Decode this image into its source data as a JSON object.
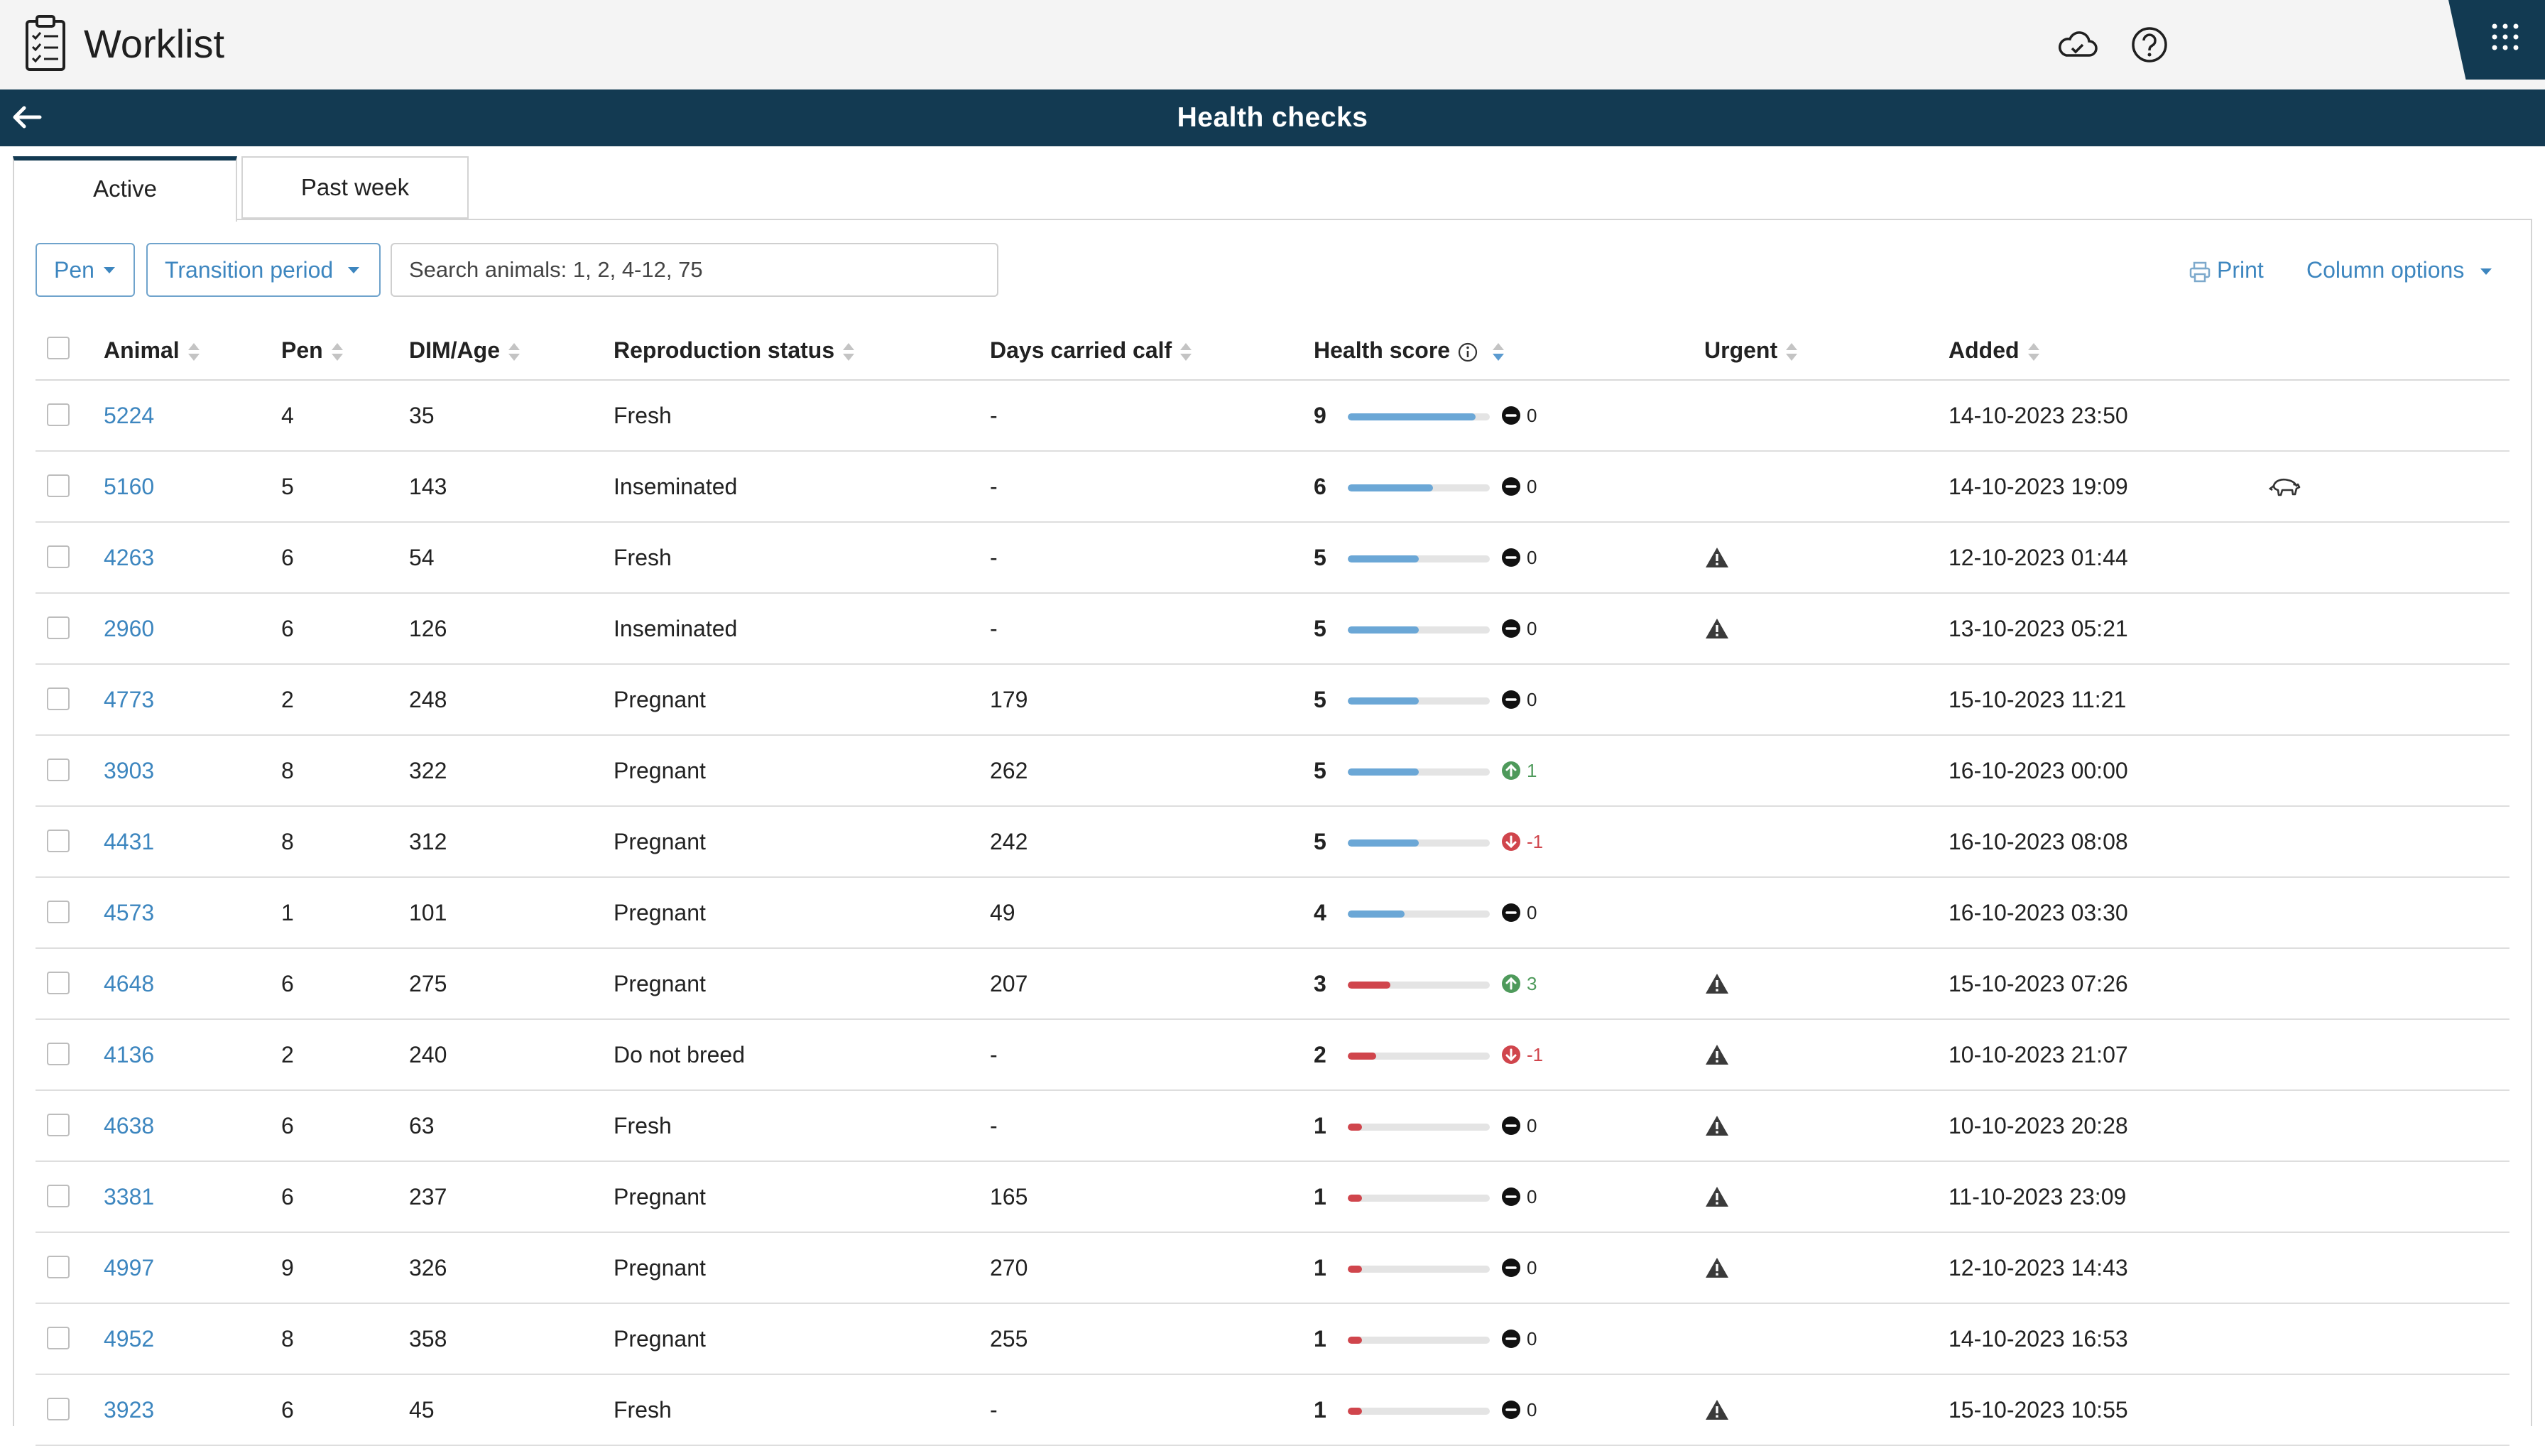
{
  "app": {
    "title": "Worklist"
  },
  "nav": {
    "title": "Health checks"
  },
  "tabs": [
    {
      "label": "Active",
      "active": true
    },
    {
      "label": "Past week",
      "active": false
    }
  ],
  "filters": {
    "pen_label": "Pen",
    "period_label": "Transition period",
    "search_placeholder": "Search animals: 1, 2, 4-12, 75"
  },
  "toolbar": {
    "print_label": "Print",
    "column_options_label": "Column options"
  },
  "table": {
    "headers": [
      "Animal",
      "Pen",
      "DIM/Age",
      "Reproduction status",
      "Days carried calf",
      "Health score",
      "Urgent",
      "Added"
    ],
    "rows": [
      {
        "animal": "5224",
        "pen": "4",
        "dim": "35",
        "status": "Fresh",
        "days": "-",
        "score": "9",
        "trend": "0",
        "trend_dir": "flat",
        "urgent": false,
        "added": "14-10-2023 23:50",
        "calf": false
      },
      {
        "animal": "5160",
        "pen": "5",
        "dim": "143",
        "status": "Inseminated",
        "days": "-",
        "score": "6",
        "trend": "0",
        "trend_dir": "flat",
        "urgent": false,
        "added": "14-10-2023 19:09",
        "calf": true
      },
      {
        "animal": "4263",
        "pen": "6",
        "dim": "54",
        "status": "Fresh",
        "days": "-",
        "score": "5",
        "trend": "0",
        "trend_dir": "flat",
        "urgent": true,
        "added": "12-10-2023 01:44",
        "calf": false
      },
      {
        "animal": "2960",
        "pen": "6",
        "dim": "126",
        "status": "Inseminated",
        "days": "-",
        "score": "5",
        "trend": "0",
        "trend_dir": "flat",
        "urgent": true,
        "added": "13-10-2023 05:21",
        "calf": false
      },
      {
        "animal": "4773",
        "pen": "2",
        "dim": "248",
        "status": "Pregnant",
        "days": "179",
        "score": "5",
        "trend": "0",
        "trend_dir": "flat",
        "urgent": false,
        "added": "15-10-2023 11:21",
        "calf": false
      },
      {
        "animal": "3903",
        "pen": "8",
        "dim": "322",
        "status": "Pregnant",
        "days": "262",
        "score": "5",
        "trend": "1",
        "trend_dir": "up",
        "urgent": false,
        "added": "16-10-2023 00:00",
        "calf": false
      },
      {
        "animal": "4431",
        "pen": "8",
        "dim": "312",
        "status": "Pregnant",
        "days": "242",
        "score": "5",
        "trend": "-1",
        "trend_dir": "down",
        "urgent": false,
        "added": "16-10-2023 08:08",
        "calf": false
      },
      {
        "animal": "4573",
        "pen": "1",
        "dim": "101",
        "status": "Pregnant",
        "days": "49",
        "score": "4",
        "trend": "0",
        "trend_dir": "flat",
        "urgent": false,
        "added": "16-10-2023 03:30",
        "calf": false
      },
      {
        "animal": "4648",
        "pen": "6",
        "dim": "275",
        "status": "Pregnant",
        "days": "207",
        "score": "3",
        "trend": "3",
        "trend_dir": "up",
        "urgent": true,
        "added": "15-10-2023 07:26",
        "calf": false
      },
      {
        "animal": "4136",
        "pen": "2",
        "dim": "240",
        "status": "Do not breed",
        "days": "-",
        "score": "2",
        "trend": "-1",
        "trend_dir": "down",
        "urgent": true,
        "added": "10-10-2023 21:07",
        "calf": false
      },
      {
        "animal": "4638",
        "pen": "6",
        "dim": "63",
        "status": "Fresh",
        "days": "-",
        "score": "1",
        "trend": "0",
        "trend_dir": "flat",
        "urgent": true,
        "added": "10-10-2023 20:28",
        "calf": false
      },
      {
        "animal": "3381",
        "pen": "6",
        "dim": "237",
        "status": "Pregnant",
        "days": "165",
        "score": "1",
        "trend": "0",
        "trend_dir": "flat",
        "urgent": true,
        "added": "11-10-2023 23:09",
        "calf": false
      },
      {
        "animal": "4997",
        "pen": "9",
        "dim": "326",
        "status": "Pregnant",
        "days": "270",
        "score": "1",
        "trend": "0",
        "trend_dir": "flat",
        "urgent": true,
        "added": "12-10-2023 14:43",
        "calf": false
      },
      {
        "animal": "4952",
        "pen": "8",
        "dim": "358",
        "status": "Pregnant",
        "days": "255",
        "score": "1",
        "trend": "0",
        "trend_dir": "flat",
        "urgent": false,
        "added": "14-10-2023 16:53",
        "calf": false
      },
      {
        "animal": "3923",
        "pen": "6",
        "dim": "45",
        "status": "Fresh",
        "days": "-",
        "score": "1",
        "trend": "0",
        "trend_dir": "flat",
        "urgent": true,
        "added": "15-10-2023 10:55",
        "calf": false
      }
    ]
  },
  "colors": {
    "accent": "#3d86bf",
    "nav": "#133a52",
    "bar_good": "#6ba7d6",
    "bar_bad": "#d0454c",
    "trend_up": "#4e9a5b",
    "trend_down": "#d0454c"
  },
  "icons": {
    "logo": "clipboard-icon",
    "cloud": "cloud-sync-icon",
    "help": "help-icon",
    "apps": "apps-grid-icon",
    "back": "back-arrow-icon",
    "print": "printer-icon",
    "warning": "warning-icon",
    "calf": "calf-icon"
  }
}
